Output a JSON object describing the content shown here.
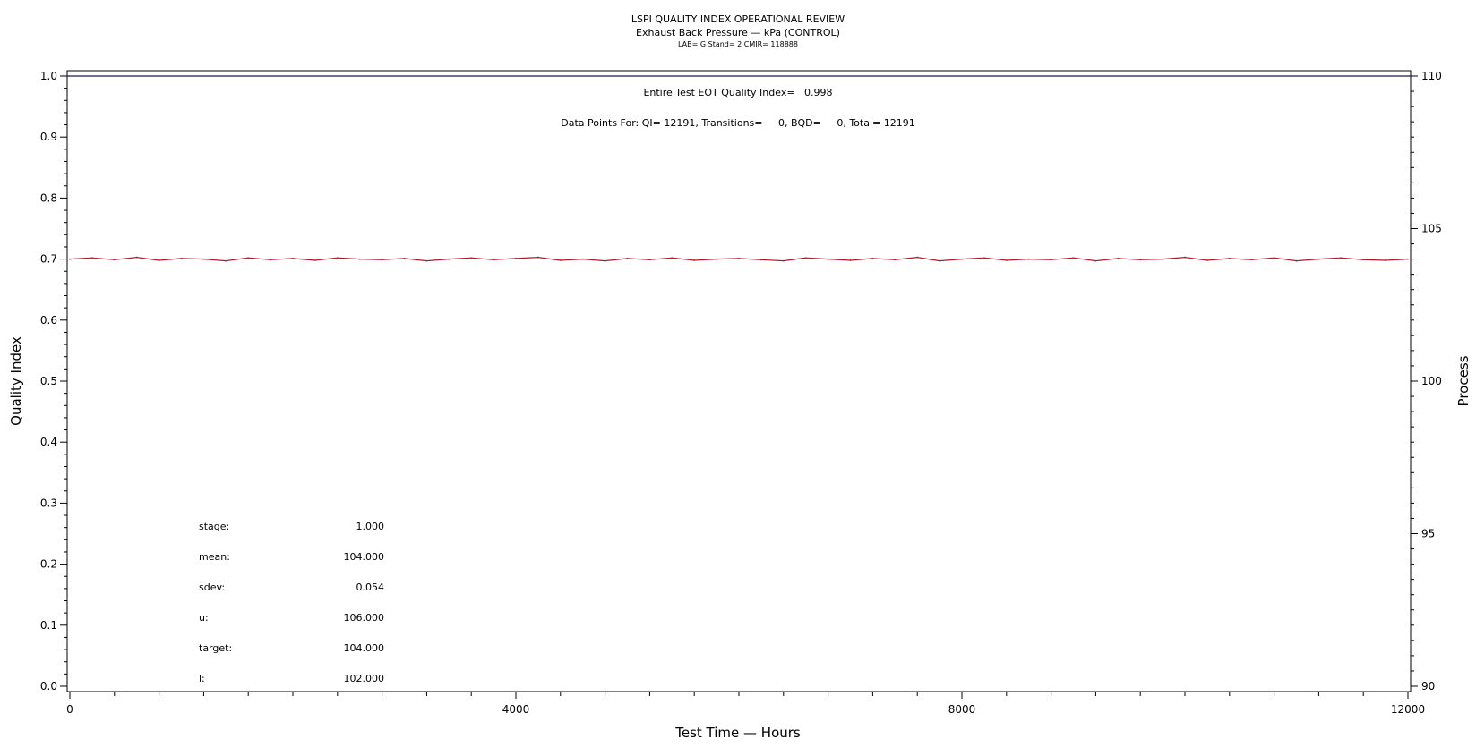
{
  "chart_data": {
    "type": "line",
    "title": "LSPI QUALITY INDEX OPERATIONAL REVIEW",
    "subtitle": "Exhaust Back Pressure — kPa (CONTROL)",
    "info_line": "LAB= G Stand= 2 CMIR= 118888",
    "xlabel": "Test Time — Hours",
    "ylabel_left": "Quality Index",
    "ylabel_right": "Process",
    "xlim": [
      0,
      12000
    ],
    "ylim_left": [
      0.0,
      1.0
    ],
    "ylim_right": [
      90,
      110
    ],
    "x_ticks": [
      "0",
      "4000",
      "8000",
      "12000"
    ],
    "y_left_ticks": [
      "0.0",
      "0.1",
      "0.2",
      "0.3",
      "0.4",
      "0.5",
      "0.6",
      "0.7",
      "0.8",
      "0.9",
      "1.0"
    ],
    "y_right_ticks": [
      "90",
      "95",
      "100",
      "105",
      "110"
    ],
    "annotations": {
      "eot_quality_index": "Entire Test EOT Quality Index=   0.998",
      "data_points": "Data Points For: QI= 12191, Transitions=     0, BQD=     0, Total= 12191"
    },
    "series": [
      {
        "color": "#b0182e",
        "axis": "left",
        "x": [
          0,
          200,
          400,
          600,
          800,
          1000,
          1200,
          1400,
          1600,
          1800,
          2000,
          2200,
          2400,
          2600,
          2800,
          3000,
          3200,
          3400,
          3600,
          3800,
          4000,
          4200,
          4400,
          4600,
          4800,
          5000,
          5200,
          5400,
          5600,
          5800,
          6000,
          6200,
          6400,
          6600,
          6800,
          7000,
          7200,
          7400,
          7600,
          7800,
          8000,
          8200,
          8400,
          8600,
          8800,
          9000,
          9200,
          9400,
          9600,
          9800,
          10000,
          10200,
          10400,
          10600,
          10800,
          11000,
          11200,
          11400,
          11600,
          11800,
          12000
        ],
        "values": [
          0.7,
          0.702,
          0.699,
          0.703,
          0.698,
          0.701,
          0.7,
          0.697,
          0.702,
          0.699,
          0.701,
          0.698,
          0.702,
          0.7,
          0.699,
          0.701,
          0.697,
          0.7,
          0.702,
          0.699,
          0.701,
          0.703,
          0.698,
          0.7,
          0.697,
          0.701,
          0.699,
          0.702,
          0.698,
          0.7,
          0.701,
          0.699,
          0.697,
          0.702,
          0.7,
          0.698,
          0.701,
          0.699,
          0.703,
          0.697,
          0.7,
          0.702,
          0.698,
          0.7,
          0.699,
          0.702,
          0.697,
          0.701,
          0.699,
          0.7,
          0.703,
          0.698,
          0.701,
          0.699,
          0.702,
          0.697,
          0.7,
          0.702,
          0.699,
          0.698,
          0.7
        ]
      }
    ],
    "upper_reference_line": 1.0,
    "stats": [
      {
        "label": "stage:",
        "value": "1.000"
      },
      {
        "label": "mean:",
        "value": "104.000"
      },
      {
        "label": "sdev:",
        "value": "0.054"
      },
      {
        "label": "u:",
        "value": "106.000"
      },
      {
        "label": "target:",
        "value": "104.000"
      },
      {
        "label": "l:",
        "value": "102.000"
      }
    ],
    "grid": false,
    "legend": "none"
  }
}
